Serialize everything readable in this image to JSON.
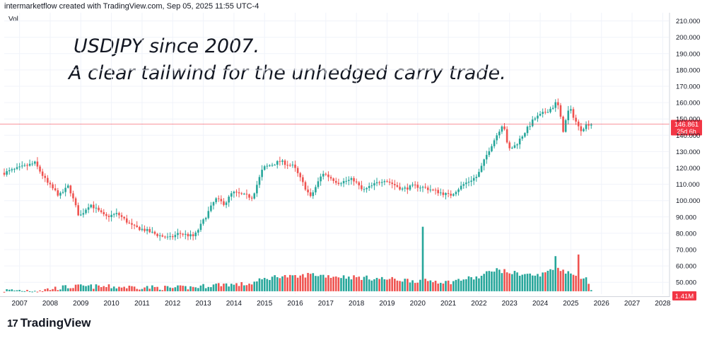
{
  "watermark": "intermarketflow created with TradingView.com, Sep 05, 2025 11:55 UTC-4",
  "volume_label": "Vol",
  "headline_line1": "USDJPY since 2007.",
  "headline_line2": "A clear tailwind for the unhedged carry trade.",
  "brand": {
    "logo": "17",
    "name": "TradingView"
  },
  "price_badge": {
    "price": "146.861",
    "countdown": "25d 6h"
  },
  "volume_badge": "1.41M",
  "colors": {
    "up": "#26a69a",
    "down": "#ef5350",
    "price_line": "#f23645",
    "grid": "#f0f3fa",
    "text": "#131722"
  },
  "chart_data": {
    "type": "candlestick",
    "symbol": "USDJPY",
    "interval": "monthly",
    "price_axis": {
      "ticks": [
        "210.000",
        "200.000",
        "190.000",
        "180.000",
        "170.000",
        "160.000",
        "150.000",
        "140.000",
        "130.000",
        "120.000",
        "110.000",
        "100.000",
        "90.000",
        "80.000",
        "70.000",
        "60.000",
        "50.000"
      ],
      "ylim": [
        48,
        213
      ]
    },
    "time_axis": {
      "ticks": [
        "2007",
        "2008",
        "2009",
        "2010",
        "2011",
        "2012",
        "2013",
        "2014",
        "2015",
        "2016",
        "2017",
        "2018",
        "2019",
        "2020",
        "2021",
        "2022",
        "2023",
        "2024",
        "2025",
        "2026",
        "2027",
        "2028"
      ],
      "xlim": [
        2006.5,
        2028.2
      ]
    },
    "last_price": 146.861,
    "price_anchors": [
      [
        2006.5,
        117
      ],
      [
        2007.0,
        120
      ],
      [
        2007.5,
        123
      ],
      [
        2007.9,
        111
      ],
      [
        2008.3,
        103
      ],
      [
        2008.6,
        109
      ],
      [
        2008.95,
        90
      ],
      [
        2009.3,
        98
      ],
      [
        2009.8,
        90
      ],
      [
        2010.2,
        92
      ],
      [
        2010.7,
        84
      ],
      [
        2011.1,
        82
      ],
      [
        2011.5,
        79
      ],
      [
        2011.9,
        77
      ],
      [
        2012.2,
        80
      ],
      [
        2012.7,
        78
      ],
      [
        2012.95,
        86
      ],
      [
        2013.4,
        101
      ],
      [
        2013.7,
        98
      ],
      [
        2013.95,
        105
      ],
      [
        2014.6,
        102
      ],
      [
        2014.95,
        120
      ],
      [
        2015.5,
        124
      ],
      [
        2015.95,
        121
      ],
      [
        2016.5,
        102
      ],
      [
        2016.9,
        117
      ],
      [
        2017.4,
        111
      ],
      [
        2017.9,
        113
      ],
      [
        2018.2,
        106
      ],
      [
        2018.9,
        113
      ],
      [
        2019.5,
        107
      ],
      [
        2019.9,
        109
      ],
      [
        2020.2,
        108
      ],
      [
        2020.9,
        104
      ],
      [
        2021.05,
        103
      ],
      [
        2021.5,
        110
      ],
      [
        2021.95,
        115
      ],
      [
        2022.3,
        130
      ],
      [
        2022.8,
        148
      ],
      [
        2022.95,
        131
      ],
      [
        2023.2,
        134
      ],
      [
        2023.8,
        150
      ],
      [
        2024.4,
        157
      ],
      [
        2024.55,
        161
      ],
      [
        2024.75,
        143
      ],
      [
        2024.95,
        157
      ],
      [
        2025.3,
        143
      ],
      [
        2025.55,
        147
      ],
      [
        2025.68,
        146.861
      ]
    ],
    "volume_anchors": [
      [
        2006.5,
        45
      ],
      [
        2007.8,
        45.3
      ],
      [
        2008.0,
        46
      ],
      [
        2008.5,
        47
      ],
      [
        2009.0,
        47.5
      ],
      [
        2011.0,
        47
      ],
      [
        2012.0,
        46.5
      ],
      [
        2012.7,
        47
      ],
      [
        2013.4,
        48.5
      ],
      [
        2013.7,
        49
      ],
      [
        2014.0,
        48.5
      ],
      [
        2014.5,
        49
      ],
      [
        2015.0,
        52
      ],
      [
        2015.5,
        54
      ],
      [
        2016.0,
        53
      ],
      [
        2016.5,
        55
      ],
      [
        2017.0,
        54
      ],
      [
        2018.0,
        53
      ],
      [
        2019.0,
        52
      ],
      [
        2020.0,
        51
      ],
      [
        2020.5,
        51
      ],
      [
        2021.0,
        50
      ],
      [
        2021.5,
        52
      ],
      [
        2022.0,
        53
      ],
      [
        2022.5,
        58
      ],
      [
        2023.0,
        56
      ],
      [
        2024.0,
        54
      ],
      [
        2024.5,
        60
      ],
      [
        2025.0,
        55
      ],
      [
        2025.5,
        52
      ],
      [
        2025.68,
        46
      ]
    ],
    "volume_spikes": [
      [
        2020.2,
        84
      ],
      [
        2024.5,
        66
      ],
      [
        2025.25,
        67
      ]
    ],
    "volume_axis_range_label": "1.41M"
  }
}
